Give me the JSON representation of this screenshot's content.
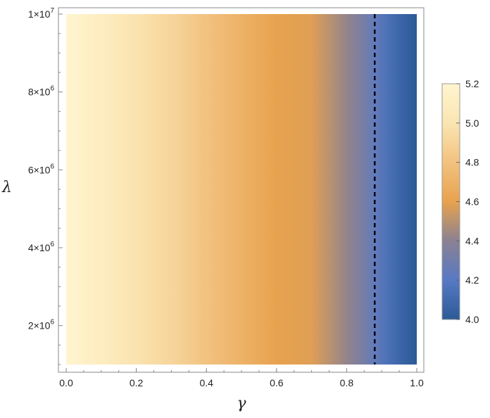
{
  "chart_data": {
    "type": "heatmap",
    "title": "",
    "xlabel": "γ",
    "ylabel": "λ",
    "xlim": [
      0.0,
      1.0
    ],
    "ylim": [
      1000000,
      10000000
    ],
    "x_ticks": [
      {
        "value": 0.0,
        "label": "0.0"
      },
      {
        "value": 0.2,
        "label": "0.2"
      },
      {
        "value": 0.4,
        "label": "0.4"
      },
      {
        "value": 0.6,
        "label": "0.6"
      },
      {
        "value": 0.8,
        "label": "0.8"
      },
      {
        "value": 1.0,
        "label": "1.0"
      }
    ],
    "y_ticks": [
      {
        "value": 2000000,
        "mantissa": "2",
        "exponent": "6"
      },
      {
        "value": 4000000,
        "mantissa": "4",
        "exponent": "6"
      },
      {
        "value": 6000000,
        "mantissa": "6",
        "exponent": "6"
      },
      {
        "value": 8000000,
        "mantissa": "8",
        "exponent": "6"
      },
      {
        "value": 10000000,
        "mantissa": "1",
        "exponent": "7"
      }
    ],
    "colorbar": {
      "min": 4.0,
      "max": 5.2,
      "ticks": [
        {
          "value": 4.0,
          "label": "4.0"
        },
        {
          "value": 4.2,
          "label": "4.2"
        },
        {
          "value": 4.4,
          "label": "4.4"
        },
        {
          "value": 4.6,
          "label": "4.6"
        },
        {
          "value": 4.8,
          "label": "4.8"
        },
        {
          "value": 5.0,
          "label": "5.0"
        },
        {
          "value": 5.2,
          "label": "5.2"
        }
      ],
      "colors": [
        "#2c5a96",
        "#5779c4",
        "#8b8192",
        "#e8a24e",
        "#f2c27f",
        "#fae5b2",
        "#fff5cf"
      ]
    },
    "field_by_gamma": [
      {
        "x": 0.0,
        "value": 5.2
      },
      {
        "x": 0.1,
        "value": 5.1
      },
      {
        "x": 0.2,
        "value": 4.99
      },
      {
        "x": 0.3,
        "value": 4.91
      },
      {
        "x": 0.4,
        "value": 4.8
      },
      {
        "x": 0.5,
        "value": 4.7
      },
      {
        "x": 0.6,
        "value": 4.6
      },
      {
        "x": 0.7,
        "value": 4.58
      },
      {
        "x": 0.75,
        "value": 4.5
      },
      {
        "x": 0.8,
        "value": 4.42
      },
      {
        "x": 0.85,
        "value": 4.32
      },
      {
        "x": 0.88,
        "value": 4.24
      },
      {
        "x": 0.92,
        "value": 4.14
      },
      {
        "x": 0.96,
        "value": 4.06
      },
      {
        "x": 1.0,
        "value": 4.0
      }
    ],
    "reference_line": {
      "x": 0.88,
      "style": "dashed",
      "color": "#000000"
    },
    "grid": false
  }
}
